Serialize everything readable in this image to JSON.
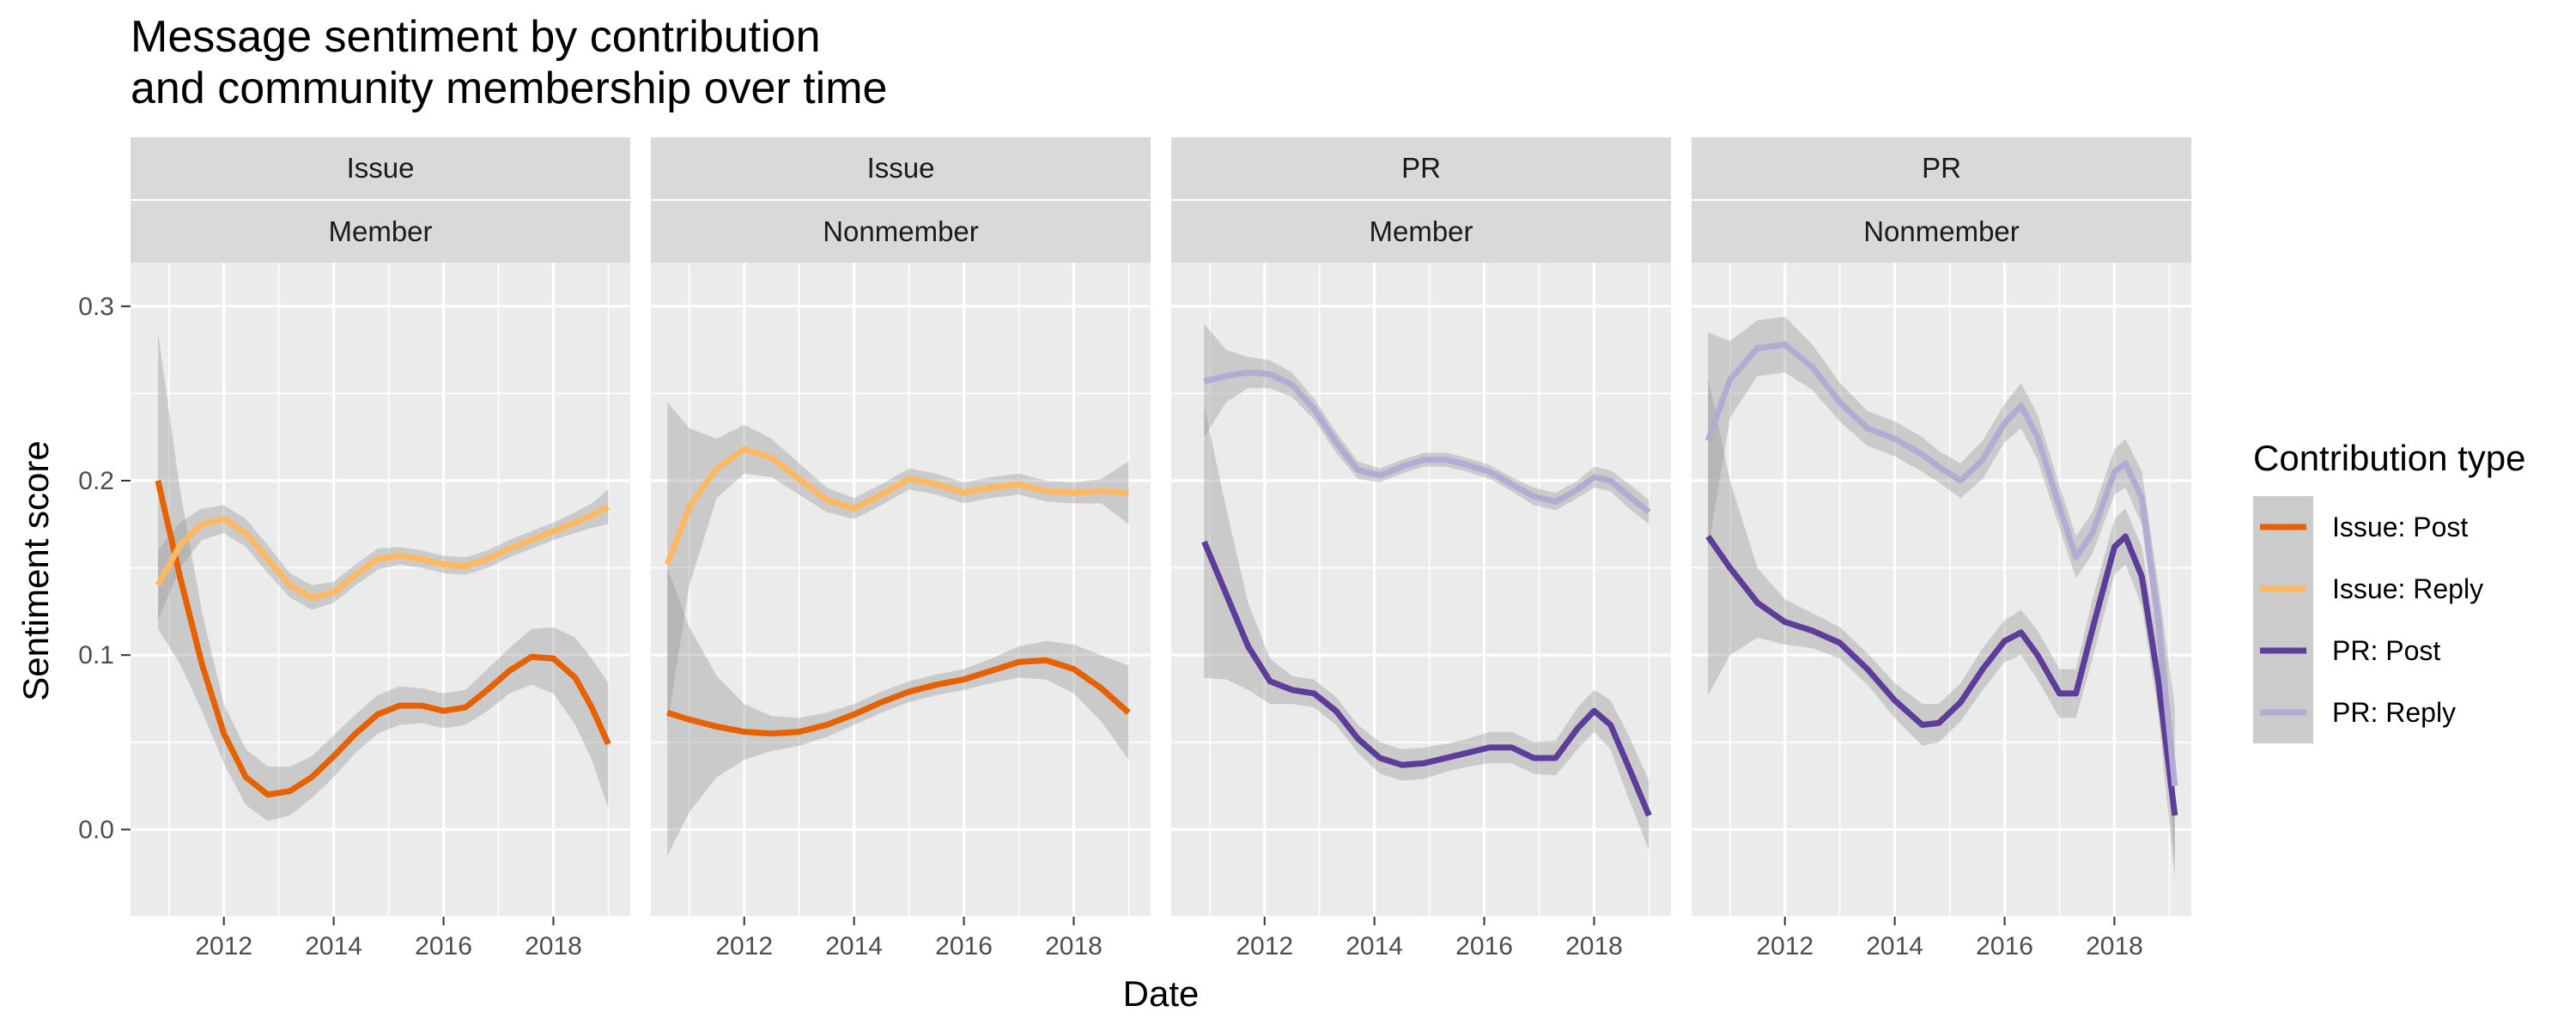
{
  "chart_data": {
    "type": "line",
    "title": [
      "Message sentiment by contribution",
      "and community membership over time"
    ],
    "xlabel": "Date",
    "ylabel": "Sentiment score",
    "xlim": [
      2010.3,
      2019.4
    ],
    "ylim": [
      -0.05,
      0.325
    ],
    "x_ticks": [
      2012,
      2014,
      2016,
      2018
    ],
    "y_ticks": [
      0.0,
      0.1,
      0.2,
      0.3
    ],
    "y_tick_labels": [
      "0.0",
      "0.1",
      "0.2",
      "0.3"
    ],
    "grid": true,
    "legend": {
      "title": "Contribution type",
      "placement": "right",
      "entries": [
        {
          "label": "Issue: Post",
          "color": "#e66101"
        },
        {
          "label": "Issue: Reply",
          "color": "#fdb863"
        },
        {
          "label": "PR: Post",
          "color": "#5e3c99"
        },
        {
          "label": "PR: Reply",
          "color": "#b2abd2"
        }
      ]
    },
    "ribbon_color": "#999999",
    "panels": [
      {
        "strip_top": "Issue",
        "strip_bottom": "Member",
        "series": [
          {
            "name": "Issue: Post",
            "color": "#e66101",
            "x": [
              2010.8,
              2011.2,
              2011.6,
              2012.0,
              2012.4,
              2012.8,
              2013.2,
              2013.6,
              2014.0,
              2014.4,
              2014.8,
              2015.2,
              2015.6,
              2016.0,
              2016.4,
              2016.8,
              2017.2,
              2017.6,
              2018.0,
              2018.4,
              2018.7,
              2019.0
            ],
            "y": [
              0.2,
              0.145,
              0.095,
              0.055,
              0.03,
              0.02,
              0.022,
              0.03,
              0.042,
              0.055,
              0.066,
              0.071,
              0.071,
              0.068,
              0.07,
              0.08,
              0.091,
              0.099,
              0.098,
              0.087,
              0.07,
              0.049
            ],
            "lo": [
              0.115,
              0.095,
              0.068,
              0.038,
              0.014,
              0.005,
              0.008,
              0.018,
              0.03,
              0.044,
              0.055,
              0.06,
              0.061,
              0.058,
              0.06,
              0.068,
              0.078,
              0.083,
              0.078,
              0.06,
              0.04,
              0.012
            ],
            "hi": [
              0.285,
              0.195,
              0.125,
              0.072,
              0.046,
              0.036,
              0.036,
              0.042,
              0.054,
              0.066,
              0.077,
              0.082,
              0.081,
              0.078,
              0.08,
              0.092,
              0.104,
              0.115,
              0.116,
              0.11,
              0.098,
              0.084
            ]
          },
          {
            "name": "Issue: Reply",
            "color": "#fdb863",
            "x": [
              2010.8,
              2011.2,
              2011.6,
              2012.0,
              2012.4,
              2012.8,
              2013.2,
              2013.6,
              2014.0,
              2014.4,
              2014.8,
              2015.2,
              2015.6,
              2016.0,
              2016.4,
              2016.8,
              2017.2,
              2017.6,
              2018.0,
              2018.4,
              2018.7,
              2019.0
            ],
            "y": [
              0.14,
              0.163,
              0.175,
              0.178,
              0.17,
              0.155,
              0.14,
              0.133,
              0.136,
              0.146,
              0.155,
              0.157,
              0.155,
              0.152,
              0.151,
              0.155,
              0.161,
              0.166,
              0.171,
              0.176,
              0.18,
              0.185
            ],
            "lo": [
              0.12,
              0.15,
              0.166,
              0.17,
              0.162,
              0.147,
              0.133,
              0.126,
              0.13,
              0.14,
              0.149,
              0.152,
              0.15,
              0.147,
              0.146,
              0.15,
              0.156,
              0.161,
              0.166,
              0.17,
              0.173,
              0.175
            ],
            "hi": [
              0.16,
              0.176,
              0.184,
              0.186,
              0.178,
              0.163,
              0.147,
              0.14,
              0.142,
              0.152,
              0.161,
              0.162,
              0.16,
              0.157,
              0.156,
              0.16,
              0.166,
              0.171,
              0.176,
              0.182,
              0.187,
              0.195
            ]
          }
        ]
      },
      {
        "strip_top": "Issue",
        "strip_bottom": "Nonmember",
        "series": [
          {
            "name": "Issue: Post",
            "color": "#e66101",
            "x": [
              2010.6,
              2011.0,
              2011.5,
              2012.0,
              2012.5,
              2013.0,
              2013.5,
              2014.0,
              2014.5,
              2015.0,
              2015.5,
              2016.0,
              2016.5,
              2017.0,
              2017.5,
              2018.0,
              2018.5,
              2019.0
            ],
            "y": [
              0.067,
              0.063,
              0.059,
              0.056,
              0.055,
              0.056,
              0.06,
              0.066,
              0.073,
              0.079,
              0.083,
              0.086,
              0.091,
              0.096,
              0.097,
              0.092,
              0.081,
              0.067
            ],
            "lo": [
              -0.015,
              0.01,
              0.03,
              0.04,
              0.045,
              0.048,
              0.053,
              0.06,
              0.067,
              0.073,
              0.077,
              0.08,
              0.084,
              0.087,
              0.086,
              0.078,
              0.062,
              0.04
            ],
            "hi": [
              0.15,
              0.116,
              0.088,
              0.072,
              0.065,
              0.064,
              0.067,
              0.072,
              0.079,
              0.085,
              0.089,
              0.092,
              0.098,
              0.105,
              0.108,
              0.106,
              0.1,
              0.094
            ]
          },
          {
            "name": "Issue: Reply",
            "color": "#fdb863",
            "x": [
              2010.6,
              2011.0,
              2011.5,
              2012.0,
              2012.5,
              2013.0,
              2013.5,
              2014.0,
              2014.5,
              2015.0,
              2015.5,
              2016.0,
              2016.5,
              2017.0,
              2017.5,
              2018.0,
              2018.5,
              2019.0
            ],
            "y": [
              0.152,
              0.185,
              0.207,
              0.218,
              0.213,
              0.201,
              0.189,
              0.184,
              0.192,
              0.201,
              0.198,
              0.193,
              0.196,
              0.198,
              0.194,
              0.193,
              0.194,
              0.193
            ],
            "lo": [
              0.06,
              0.14,
              0.19,
              0.204,
              0.202,
              0.192,
              0.182,
              0.178,
              0.186,
              0.195,
              0.192,
              0.187,
              0.19,
              0.192,
              0.188,
              0.187,
              0.187,
              0.175
            ],
            "hi": [
              0.245,
              0.23,
              0.224,
              0.232,
              0.224,
              0.21,
              0.196,
              0.19,
              0.198,
              0.207,
              0.204,
              0.199,
              0.202,
              0.204,
              0.2,
              0.199,
              0.201,
              0.211
            ]
          }
        ]
      },
      {
        "strip_top": "PR",
        "strip_bottom": "Member",
        "series": [
          {
            "name": "PR: Post",
            "color": "#5e3c99",
            "x": [
              2010.9,
              2011.3,
              2011.7,
              2012.1,
              2012.5,
              2012.9,
              2013.3,
              2013.7,
              2014.1,
              2014.5,
              2014.9,
              2015.3,
              2015.7,
              2016.1,
              2016.5,
              2016.9,
              2017.3,
              2017.7,
              2018.0,
              2018.3,
              2018.6,
              2019.0
            ],
            "y": [
              0.165,
              0.135,
              0.105,
              0.085,
              0.08,
              0.078,
              0.068,
              0.052,
              0.041,
              0.037,
              0.038,
              0.041,
              0.044,
              0.047,
              0.047,
              0.041,
              0.041,
              0.058,
              0.068,
              0.06,
              0.038,
              0.008
            ],
            "lo": [
              0.087,
              0.086,
              0.08,
              0.072,
              0.072,
              0.07,
              0.06,
              0.044,
              0.032,
              0.028,
              0.029,
              0.033,
              0.036,
              0.038,
              0.038,
              0.032,
              0.031,
              0.046,
              0.056,
              0.046,
              0.02,
              -0.012
            ],
            "hi": [
              0.243,
              0.184,
              0.13,
              0.098,
              0.088,
              0.086,
              0.076,
              0.06,
              0.05,
              0.046,
              0.047,
              0.049,
              0.052,
              0.056,
              0.056,
              0.05,
              0.051,
              0.07,
              0.08,
              0.074,
              0.056,
              0.028
            ]
          },
          {
            "name": "PR: Reply",
            "color": "#b2abd2",
            "x": [
              2010.9,
              2011.3,
              2011.7,
              2012.1,
              2012.5,
              2012.9,
              2013.3,
              2013.7,
              2014.1,
              2014.5,
              2014.9,
              2015.3,
              2015.7,
              2016.1,
              2016.5,
              2016.9,
              2017.3,
              2017.7,
              2018.0,
              2018.3,
              2018.6,
              2019.0
            ],
            "y": [
              0.257,
              0.26,
              0.262,
              0.261,
              0.255,
              0.241,
              0.222,
              0.206,
              0.203,
              0.208,
              0.212,
              0.212,
              0.209,
              0.205,
              0.198,
              0.191,
              0.188,
              0.195,
              0.202,
              0.2,
              0.192,
              0.182
            ],
            "lo": [
              0.225,
              0.245,
              0.253,
              0.253,
              0.248,
              0.235,
              0.216,
              0.201,
              0.199,
              0.204,
              0.208,
              0.208,
              0.205,
              0.201,
              0.194,
              0.186,
              0.183,
              0.19,
              0.196,
              0.194,
              0.185,
              0.175
            ],
            "hi": [
              0.29,
              0.275,
              0.271,
              0.269,
              0.262,
              0.247,
              0.228,
              0.211,
              0.207,
              0.212,
              0.216,
              0.216,
              0.213,
              0.209,
              0.202,
              0.196,
              0.193,
              0.2,
              0.208,
              0.206,
              0.199,
              0.189
            ]
          }
        ]
      },
      {
        "strip_top": "PR",
        "strip_bottom": "Nonmember",
        "series": [
          {
            "name": "PR: Post",
            "color": "#5e3c99",
            "x": [
              2010.6,
              2011.0,
              2011.5,
              2012.0,
              2012.5,
              2013.0,
              2013.5,
              2014.0,
              2014.5,
              2014.8,
              2015.2,
              2015.6,
              2016.0,
              2016.3,
              2016.6,
              2017.0,
              2017.3,
              2017.6,
              2018.0,
              2018.2,
              2018.5,
              2018.8,
              2019.1
            ],
            "y": [
              0.168,
              0.15,
              0.13,
              0.119,
              0.114,
              0.107,
              0.092,
              0.074,
              0.06,
              0.061,
              0.073,
              0.092,
              0.108,
              0.113,
              0.1,
              0.078,
              0.078,
              0.115,
              0.162,
              0.168,
              0.145,
              0.085,
              0.008
            ],
            "lo": [
              0.077,
              0.1,
              0.11,
              0.106,
              0.104,
              0.098,
              0.083,
              0.064,
              0.048,
              0.05,
              0.062,
              0.08,
              0.096,
              0.1,
              0.086,
              0.064,
              0.064,
              0.098,
              0.146,
              0.152,
              0.128,
              0.066,
              -0.028
            ],
            "hi": [
              0.259,
              0.2,
              0.15,
              0.132,
              0.124,
              0.116,
              0.101,
              0.084,
              0.072,
              0.072,
              0.084,
              0.104,
              0.12,
              0.126,
              0.114,
              0.092,
              0.092,
              0.132,
              0.178,
              0.184,
              0.162,
              0.104,
              0.044
            ]
          },
          {
            "name": "PR: Reply",
            "color": "#b2abd2",
            "x": [
              2010.6,
              2011.0,
              2011.5,
              2012.0,
              2012.5,
              2013.0,
              2013.5,
              2014.0,
              2014.5,
              2014.8,
              2015.2,
              2015.6,
              2016.0,
              2016.3,
              2016.6,
              2017.0,
              2017.3,
              2017.6,
              2018.0,
              2018.2,
              2018.5,
              2018.8,
              2019.1
            ],
            "y": [
              0.223,
              0.258,
              0.276,
              0.278,
              0.265,
              0.245,
              0.23,
              0.224,
              0.215,
              0.208,
              0.2,
              0.212,
              0.233,
              0.243,
              0.225,
              0.185,
              0.156,
              0.17,
              0.205,
              0.21,
              0.19,
              0.12,
              0.025
            ],
            "lo": [
              0.16,
              0.236,
              0.26,
              0.262,
              0.252,
              0.234,
              0.22,
              0.214,
              0.205,
              0.199,
              0.19,
              0.201,
              0.222,
              0.23,
              0.212,
              0.173,
              0.144,
              0.158,
              0.192,
              0.196,
              0.175,
              0.1,
              -0.02
            ],
            "hi": [
              0.285,
              0.28,
              0.292,
              0.294,
              0.278,
              0.256,
              0.24,
              0.234,
              0.225,
              0.217,
              0.21,
              0.223,
              0.244,
              0.256,
              0.238,
              0.197,
              0.168,
              0.182,
              0.218,
              0.224,
              0.205,
              0.14,
              0.07
            ]
          }
        ]
      }
    ]
  }
}
